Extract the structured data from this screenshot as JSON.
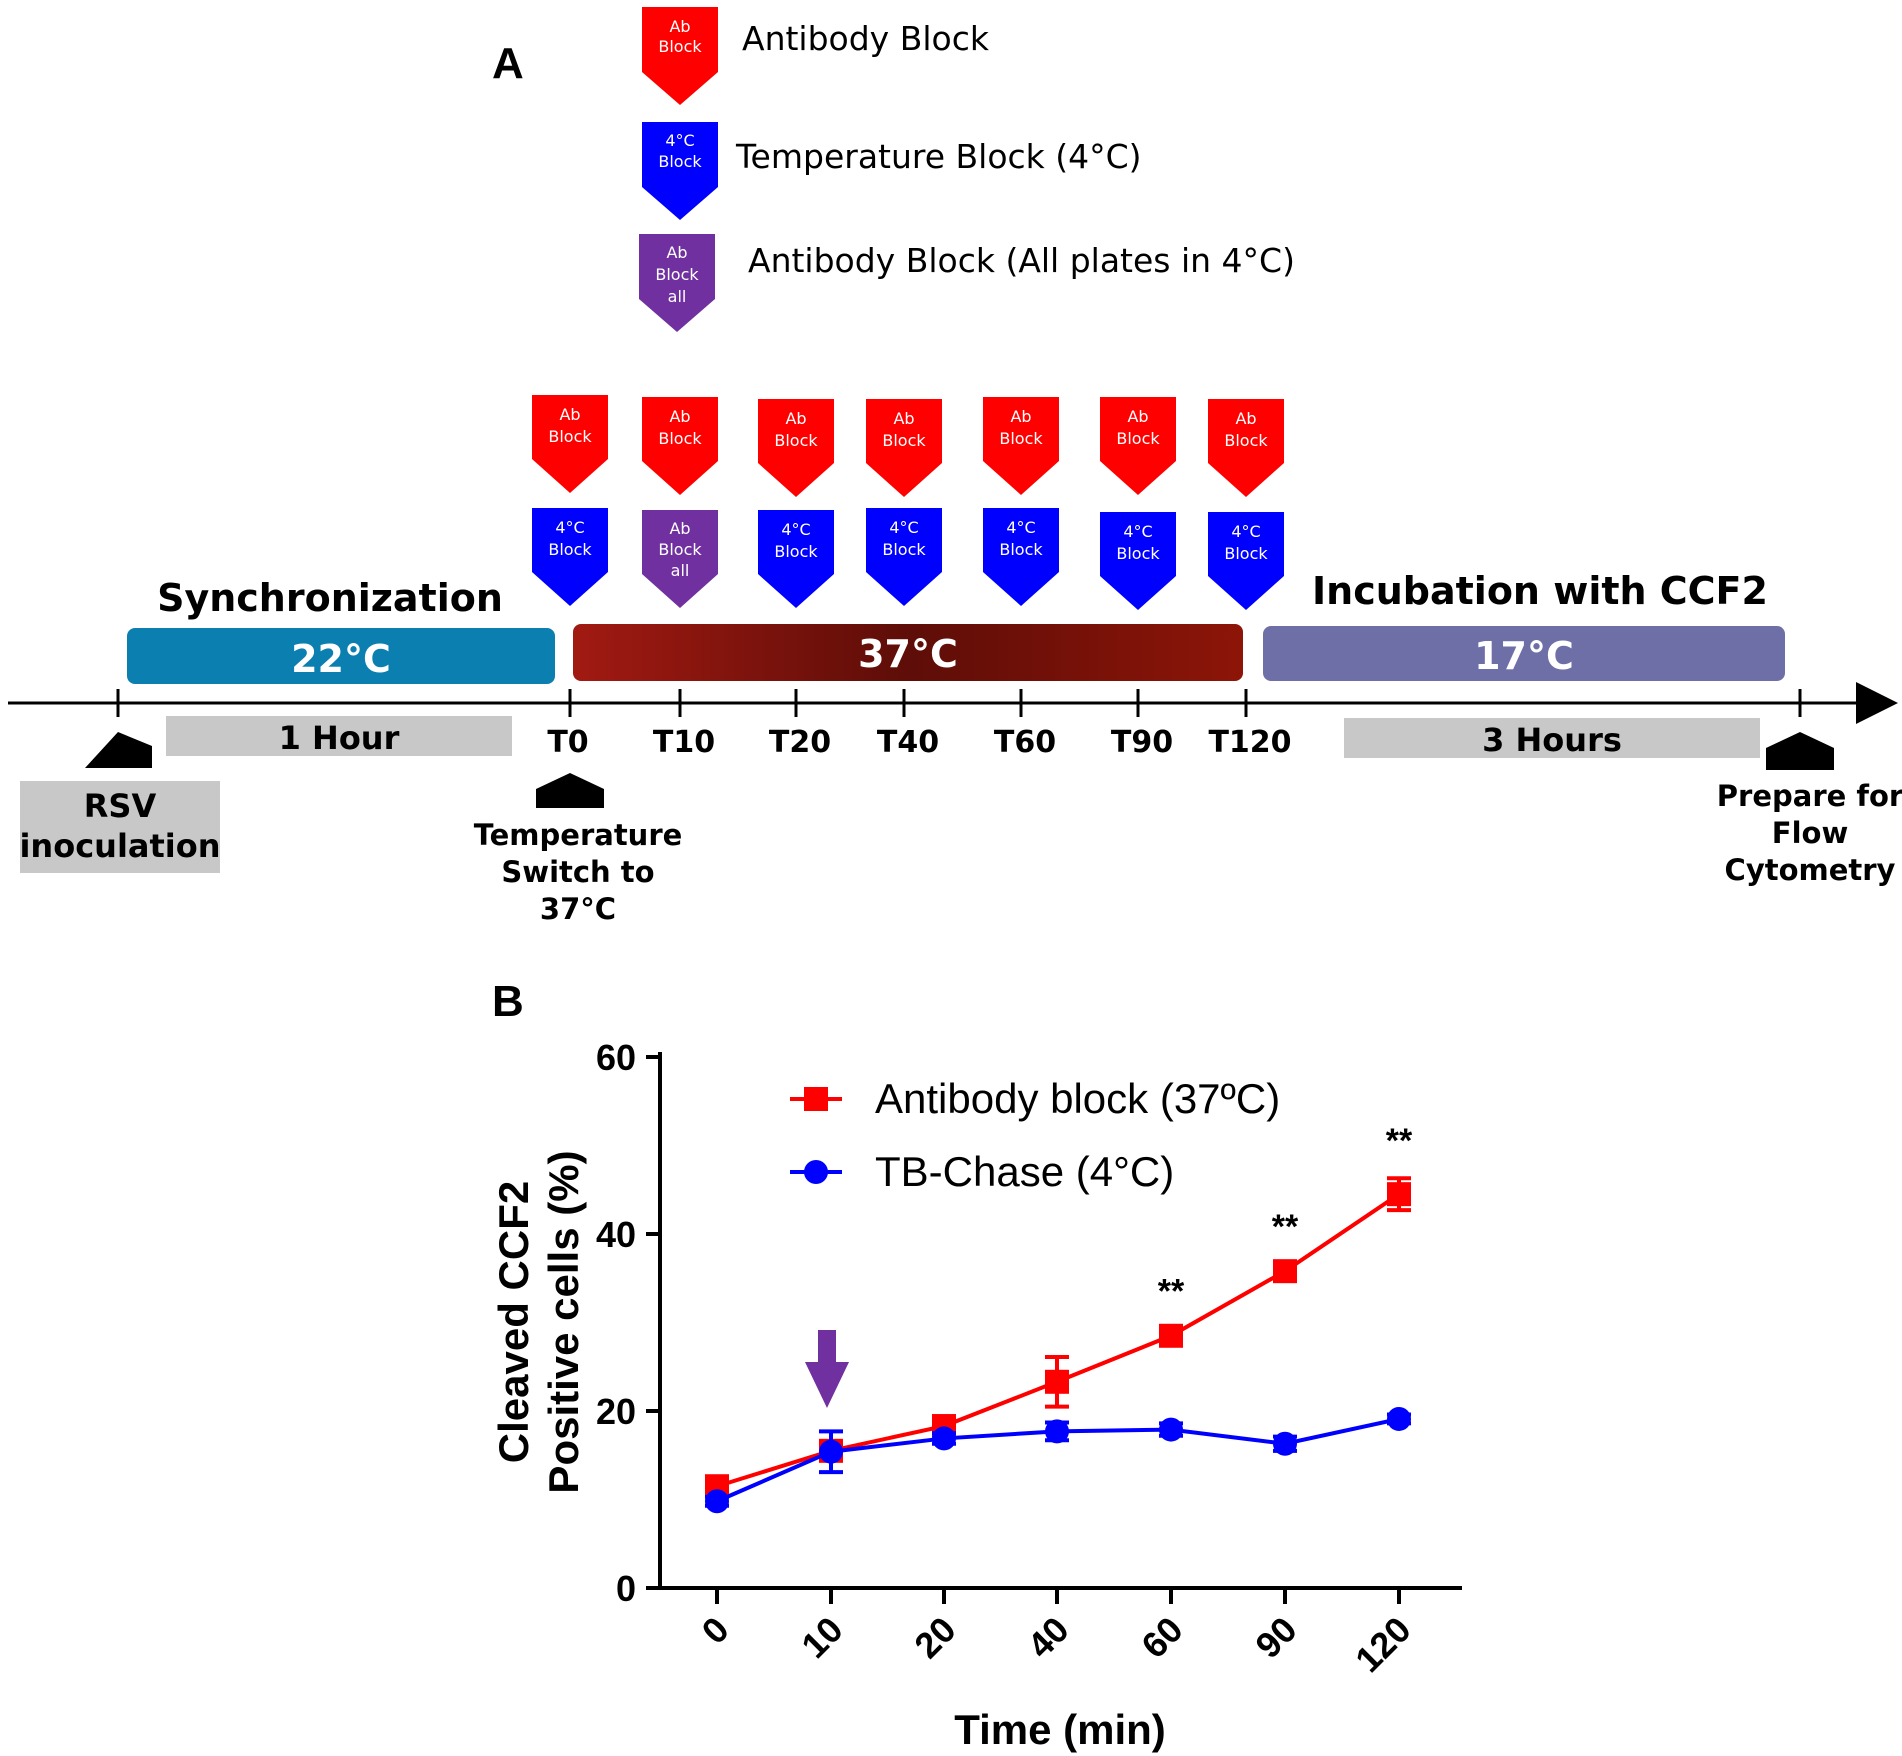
{
  "panel_a": {
    "letter": "A",
    "colors": {
      "ab_block": "#ff0000",
      "temp_block": "#0000ff",
      "ab_block_all": "#7030a0"
    },
    "legend": [
      {
        "icon_lines": [
          "Ab",
          "Block"
        ],
        "label": "Antibody Block",
        "color": "#ff0000"
      },
      {
        "icon_lines": [
          "4°C",
          "Block"
        ],
        "label": "Temperature  Block (4°C)",
        "color": "#0000ff"
      },
      {
        "icon_lines": [
          "Ab",
          "Block",
          "all"
        ],
        "label": "Antibody Block (All plates in 4°C)",
        "color": "#7030a0"
      }
    ],
    "timepoints": [
      {
        "label": "T0",
        "top_icon": [
          "Ab",
          "Block"
        ],
        "bottom_icon": [
          "4°C",
          "Block"
        ],
        "bottom_type": "temp"
      },
      {
        "label": "T10",
        "top_icon": [
          "Ab",
          "Block"
        ],
        "bottom_icon": [
          "Ab",
          "Block",
          "all"
        ],
        "bottom_type": "all"
      },
      {
        "label": "T20",
        "top_icon": [
          "Ab",
          "Block"
        ],
        "bottom_icon": [
          "4°C",
          "Block"
        ],
        "bottom_type": "temp"
      },
      {
        "label": "T40",
        "top_icon": [
          "Ab",
          "Block"
        ],
        "bottom_icon": [
          "4°C",
          "Block"
        ],
        "bottom_type": "temp"
      },
      {
        "label": "T60",
        "top_icon": [
          "Ab",
          "Block"
        ],
        "bottom_icon": [
          "4°C",
          "Block"
        ],
        "bottom_type": "temp"
      },
      {
        "label": "T90",
        "top_icon": [
          "Ab",
          "Block"
        ],
        "bottom_icon": [
          "4°C",
          "Block"
        ],
        "bottom_type": "temp"
      },
      {
        "label": "T120",
        "top_icon": [
          "Ab",
          "Block"
        ],
        "bottom_icon": [
          "4°C",
          "Block"
        ],
        "bottom_type": "temp"
      }
    ],
    "phases": [
      {
        "title": "Synchronization",
        "temperature": "22°C",
        "color": "#0a7fb0"
      },
      {
        "title": "",
        "temperature": "37°C",
        "color": "#8b1a10"
      },
      {
        "title": "Incubation with CCF2",
        "temperature": "17°C",
        "color": "#6f6fa8"
      }
    ],
    "durations": [
      "1 Hour",
      "3 Hours"
    ],
    "events": {
      "start": [
        "RSV",
        "inoculation"
      ],
      "switch": [
        "Temperature",
        "Switch to",
        "37°C"
      ],
      "end": [
        "Prepare for",
        "Flow",
        "Cytometry"
      ]
    }
  },
  "chart_data": {
    "type": "line",
    "panel_letter": "B",
    "title": "",
    "xlabel": "Time (min)",
    "ylabel": [
      "Cleaved  CCF2",
      "Positive cells (%)"
    ],
    "categories": [
      "0",
      "10",
      "20",
      "40",
      "60",
      "90",
      "120"
    ],
    "ylim": [
      0,
      60
    ],
    "yticks": [
      0,
      20,
      40,
      60
    ],
    "grid": false,
    "legend_position": "top-left",
    "series": [
      {
        "name": "Antibody block (37ºC)",
        "color": "#ff0000",
        "marker": "square",
        "values": [
          11.5,
          15.5,
          18.3,
          23.3,
          28.5,
          35.8,
          44.5
        ],
        "errors": [
          0.6,
          1.0,
          0.8,
          2.8,
          0.8,
          0.8,
          1.8
        ]
      },
      {
        "name": "TB-Chase (4°C)",
        "color": "#0000ff",
        "marker": "circle",
        "values": [
          9.8,
          15.4,
          16.9,
          17.7,
          17.9,
          16.3,
          19.1
        ],
        "errors": [
          0.5,
          2.3,
          0.6,
          1.0,
          0.7,
          0.8,
          0.5
        ]
      }
    ],
    "significance": [
      {
        "category": "60",
        "text": "**"
      },
      {
        "category": "90",
        "text": "**"
      },
      {
        "category": "120",
        "text": "**"
      }
    ],
    "arrow": {
      "category": "10",
      "color": "#7030a0"
    }
  }
}
